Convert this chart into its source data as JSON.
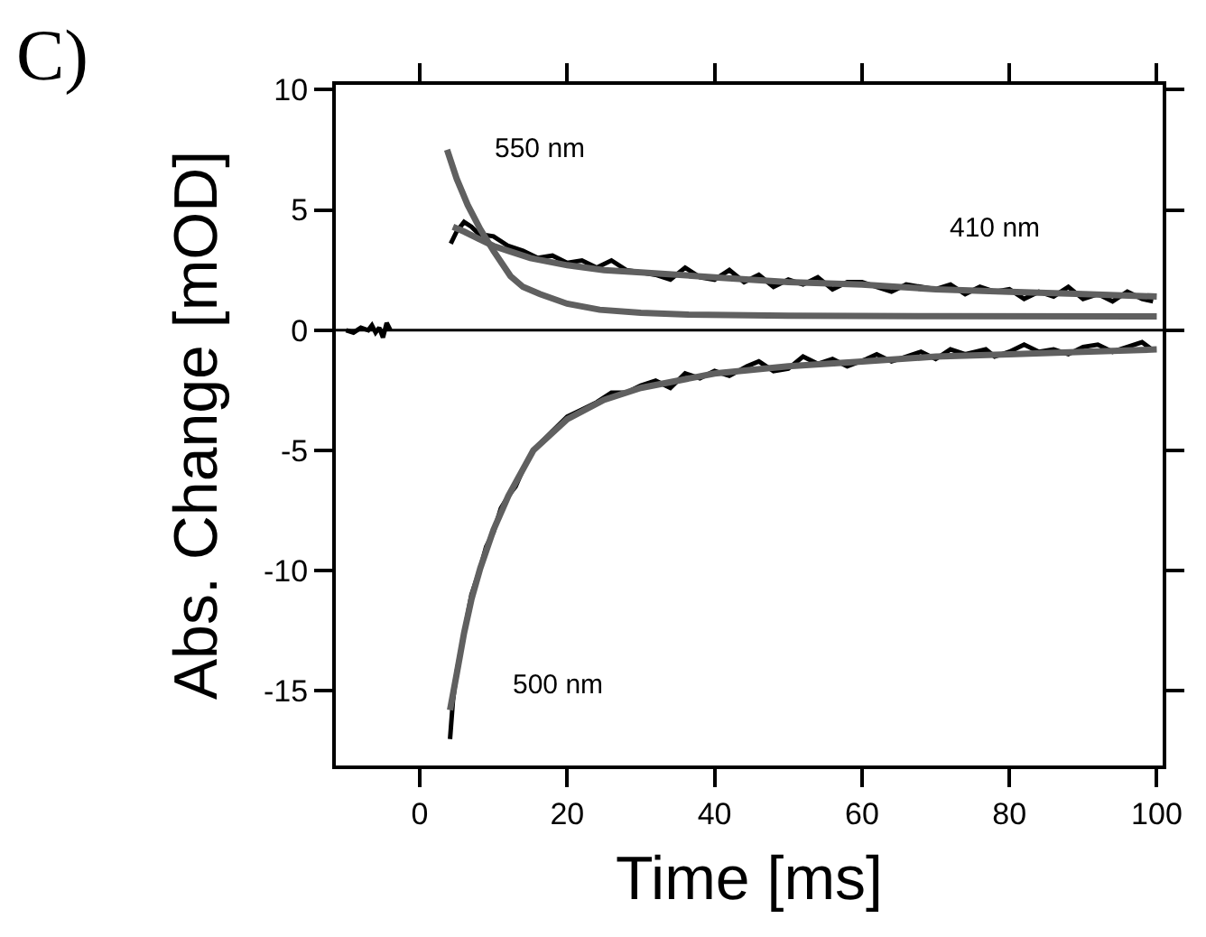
{
  "chart_data": {
    "type": "line",
    "xlabel": "Time [ms]",
    "ylabel": "Abs. Change [mOD]",
    "xlim": [
      -11.4,
      100.8
    ],
    "ylim": [
      -18.1,
      10.2
    ],
    "xticks": [
      0,
      20,
      40,
      60,
      80,
      100
    ],
    "yticks": [
      -15,
      -10,
      -5,
      0,
      5,
      10
    ],
    "line_style": "solid",
    "annotations": [
      "C)",
      "550 nm",
      "410 nm",
      "500 nm"
    ],
    "ref_lines": [
      {
        "axis": "y",
        "value": 0,
        "color": "#000000"
      }
    ],
    "series": [
      {
        "color": "#000000",
        "x": [
          -10,
          -9,
          -8,
          -7,
          -6.5,
          -6,
          -5.5,
          -5,
          -4.5,
          -4
        ],
        "values": [
          0,
          -0.1,
          0.1,
          0,
          0.2,
          -0.1,
          0.1,
          -0.3,
          0.3,
          0
        ]
      },
      {
        "color": "#000000",
        "x": [
          4.2,
          5,
          6,
          7,
          8,
          10,
          12,
          14,
          16,
          18,
          20,
          22,
          24,
          26,
          28,
          30,
          32,
          34,
          36,
          38,
          40,
          42,
          44,
          46,
          48,
          50,
          52,
          54,
          56,
          58,
          60,
          62,
          64,
          66,
          68,
          70,
          72,
          74,
          76,
          78,
          80,
          82,
          84,
          86,
          88,
          90,
          92,
          94,
          96,
          98,
          99.5
        ],
        "values": [
          3.6,
          4.1,
          4.5,
          4.3,
          4.0,
          3.9,
          3.5,
          3.3,
          3.0,
          3.1,
          2.8,
          2.9,
          2.6,
          2.9,
          2.5,
          2.4,
          2.3,
          2.1,
          2.6,
          2.2,
          2.1,
          2.5,
          2.0,
          2.3,
          1.8,
          2.1,
          1.9,
          2.2,
          1.7,
          2.0,
          2.0,
          1.8,
          1.6,
          1.9,
          1.8,
          1.7,
          1.9,
          1.5,
          1.8,
          1.6,
          1.7,
          1.3,
          1.6,
          1.4,
          1.8,
          1.3,
          1.5,
          1.2,
          1.6,
          1.3,
          1.2
        ]
      },
      {
        "color": "#606060",
        "x": [
          4.5,
          6,
          8,
          10,
          12,
          15,
          20,
          25,
          30,
          40,
          50,
          60,
          70,
          80,
          90,
          100
        ],
        "values": [
          4.3,
          4.1,
          3.8,
          3.5,
          3.3,
          3.0,
          2.7,
          2.5,
          2.4,
          2.2,
          2.0,
          1.9,
          1.7,
          1.6,
          1.5,
          1.4
        ]
      },
      {
        "color": "#606060",
        "x": [
          3.7,
          5,
          6.5,
          8.2,
          10,
          12.3,
          14,
          16.3,
          20,
          24.4,
          30,
          36.4,
          50,
          70,
          100
        ],
        "values": [
          7.5,
          6.3,
          5.2,
          4.2,
          3.3,
          2.25,
          1.8,
          1.5,
          1.1,
          0.85,
          0.72,
          0.65,
          0.6,
          0.58,
          0.57
        ]
      },
      {
        "color": "#000000",
        "x": [
          4.1,
          4.5,
          5,
          6,
          7,
          8.2,
          9,
          10,
          11,
          12,
          13,
          14,
          15.4,
          17,
          18,
          20,
          22,
          24,
          26,
          28,
          30,
          32,
          34,
          36,
          38,
          40,
          42,
          44.4,
          46,
          48,
          50,
          52,
          54,
          56,
          58,
          60.6,
          62,
          64,
          66,
          68,
          70,
          72,
          74,
          76.8,
          78,
          80,
          82,
          84,
          86,
          88,
          90,
          92,
          94,
          96,
          98,
          99.3
        ],
        "values": [
          -17,
          -15.4,
          -14.2,
          -12.6,
          -11.0,
          -9.9,
          -9.0,
          -8.4,
          -7.4,
          -6.9,
          -6.5,
          -5.8,
          -5.0,
          -4.5,
          -4.2,
          -3.6,
          -3.3,
          -3.0,
          -2.6,
          -2.6,
          -2.3,
          -2.1,
          -2.4,
          -1.8,
          -2.0,
          -1.7,
          -1.9,
          -1.5,
          -1.3,
          -1.7,
          -1.6,
          -1.1,
          -1.4,
          -1.2,
          -1.5,
          -1.2,
          -1.0,
          -1.3,
          -1.1,
          -0.9,
          -1.2,
          -0.8,
          -1.0,
          -0.8,
          -1.1,
          -0.9,
          -0.6,
          -0.9,
          -0.8,
          -1.0,
          -0.7,
          -0.6,
          -0.9,
          -0.7,
          -0.5,
          -0.8
        ]
      },
      {
        "color": "#606060",
        "x": [
          4.1,
          5,
          6,
          7,
          8.2,
          10,
          12,
          15.4,
          20,
          25,
          30,
          40,
          50,
          60,
          70,
          80,
          90,
          100
        ],
        "values": [
          -15.8,
          -14.3,
          -12.6,
          -11.2,
          -9.9,
          -8.3,
          -6.9,
          -5.0,
          -3.7,
          -2.9,
          -2.4,
          -1.8,
          -1.5,
          -1.3,
          -1.1,
          -1.0,
          -0.9,
          -0.8
        ]
      }
    ]
  }
}
